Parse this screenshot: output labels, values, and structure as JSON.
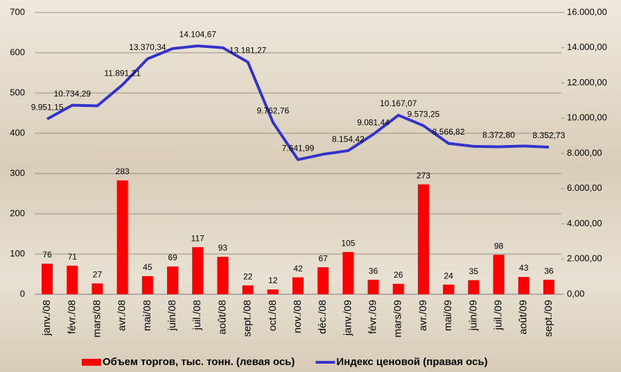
{
  "chart_data": {
    "type": "bar",
    "categories": [
      "janv./08",
      "févr./08",
      "mars/08",
      "avr./08",
      "mai/08",
      "juin/08",
      "juil./08",
      "août/08",
      "sept./08",
      "oct./08",
      "nov./08",
      "déc./08",
      "janv./09",
      "févr./09",
      "mars/09",
      "avr./09",
      "mai/09",
      "juin/09",
      "juil./09",
      "août/09",
      "sept./09"
    ],
    "series": [
      {
        "name": "Объем торгов, тыс. тонн. (левая ось)",
        "type": "bar",
        "color": "#ff0000",
        "values": [
          76,
          71,
          27,
          283,
          45,
          69,
          117,
          93,
          22,
          12,
          42,
          67,
          105,
          36,
          26,
          273,
          24,
          35,
          98,
          43,
          36
        ]
      },
      {
        "name": "Индекс ценовой (правая ось)",
        "type": "line",
        "axis": "y2",
        "color": "#3333cc",
        "values": [
          9951.15,
          10734.29,
          10700,
          11891.21,
          13370.34,
          13950,
          14104.67,
          14000,
          13181.27,
          9762.76,
          7641.99,
          7950,
          8154.42,
          9081.44,
          10167.07,
          9573.25,
          8566.82,
          8400,
          8372.8,
          8420,
          8352.73
        ],
        "value_labels": [
          "9.951,15",
          "10.734,29",
          null,
          "11.891,21",
          "13.370,34",
          null,
          "14.104,67",
          null,
          "13.181,27",
          "9.762,76",
          "7.641,99",
          null,
          "8.154,42",
          "9.081,44",
          "10.167,07",
          "9.573,25",
          "8.566,82",
          null,
          "8.372,80",
          null,
          "8.352,73"
        ]
      }
    ],
    "ylim": [
      0,
      700
    ],
    "yticks": [
      0,
      100,
      200,
      300,
      400,
      500,
      600,
      700
    ],
    "y2lim": [
      0,
      16000
    ],
    "y2ticks": [
      {
        "value": 0,
        "label": "0,00"
      },
      {
        "value": 2000,
        "label": "2.000,00"
      },
      {
        "value": 4000,
        "label": "4.000,00"
      },
      {
        "value": 6000,
        "label": "6.000,00"
      },
      {
        "value": 8000,
        "label": "8.000,00"
      },
      {
        "value": 10000,
        "label": "10.000,00"
      },
      {
        "value": 12000,
        "label": "12.000,00"
      },
      {
        "value": 14000,
        "label": "14.000,00"
      },
      {
        "value": 16000,
        "label": "16.000,00"
      }
    ],
    "grid": true,
    "legend": "bottom"
  }
}
